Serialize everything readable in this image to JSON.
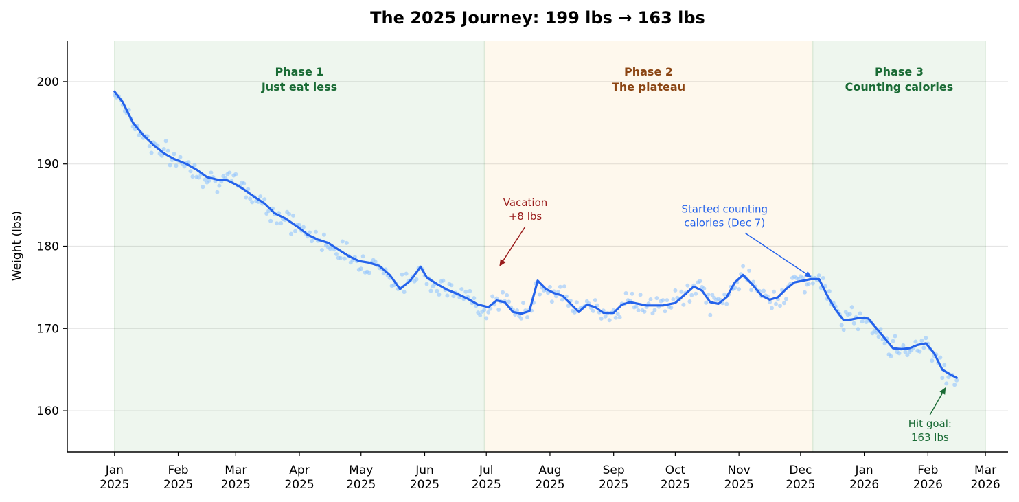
{
  "chart_data": {
    "type": "line",
    "title": "The 2025 Journey: 199 lbs → 163 lbs",
    "xlabel": "",
    "ylabel": "Weight (lbs)",
    "ylim": [
      155,
      205
    ],
    "xlim": [
      "2024-12-09",
      "2026-03-12"
    ],
    "yticks": [
      160,
      170,
      180,
      190,
      200
    ],
    "xticks": [
      {
        "date": "2025-01-01",
        "label": [
          "Jan",
          "2025"
        ]
      },
      {
        "date": "2025-02-01",
        "label": [
          "Feb",
          "2025"
        ]
      },
      {
        "date": "2025-03-01",
        "label": [
          "Mar",
          "2025"
        ]
      },
      {
        "date": "2025-04-01",
        "label": [
          "Apr",
          "2025"
        ]
      },
      {
        "date": "2025-05-01",
        "label": [
          "May",
          "2025"
        ]
      },
      {
        "date": "2025-06-01",
        "label": [
          "Jun",
          "2025"
        ]
      },
      {
        "date": "2025-07-01",
        "label": [
          "Jul",
          "2025"
        ]
      },
      {
        "date": "2025-08-01",
        "label": [
          "Aug",
          "2025"
        ]
      },
      {
        "date": "2025-09-01",
        "label": [
          "Sep",
          "2025"
        ]
      },
      {
        "date": "2025-10-01",
        "label": [
          "Oct",
          "2025"
        ]
      },
      {
        "date": "2025-11-01",
        "label": [
          "Nov",
          "2025"
        ]
      },
      {
        "date": "2025-12-01",
        "label": [
          "Dec",
          "2025"
        ]
      },
      {
        "date": "2026-01-01",
        "label": [
          "Jan",
          "2026"
        ]
      },
      {
        "date": "2026-02-01",
        "label": [
          "Feb",
          "2026"
        ]
      },
      {
        "date": "2026-03-01",
        "label": [
          "Mar",
          "2026"
        ]
      }
    ],
    "grid": "horizontal",
    "phases": [
      {
        "start": "2025-01-01",
        "end": "2025-06-30",
        "label": [
          "Phase 1",
          "Just eat less"
        ],
        "fill": "#e8f3e8",
        "color": "#1a6b35"
      },
      {
        "start": "2025-06-30",
        "end": "2025-12-07",
        "label": [
          "Phase 2",
          "The plateau"
        ],
        "fill": "#fef5e7",
        "color": "#8b4513"
      },
      {
        "start": "2025-12-07",
        "end": "2026-03-01",
        "label": [
          "Phase 3",
          "Counting calories"
        ],
        "fill": "#e8f3e8",
        "color": "#1a6b35"
      }
    ],
    "series": [
      {
        "kind": "trend",
        "color": "#2563eb",
        "points": [
          [
            "2025-01-01",
            198.8
          ],
          [
            "2025-01-05",
            197.5
          ],
          [
            "2025-01-10",
            195.0
          ],
          [
            "2025-01-15",
            193.5
          ],
          [
            "2025-01-20",
            192.3
          ],
          [
            "2025-01-25",
            191.3
          ],
          [
            "2025-01-30",
            190.6
          ],
          [
            "2025-02-05",
            190.0
          ],
          [
            "2025-02-10",
            189.3
          ],
          [
            "2025-02-15",
            188.4
          ],
          [
            "2025-02-20",
            188.1
          ],
          [
            "2025-02-25",
            188.0
          ],
          [
            "2025-03-01",
            187.5
          ],
          [
            "2025-03-05",
            186.9
          ],
          [
            "2025-03-10",
            186.0
          ],
          [
            "2025-03-15",
            185.2
          ],
          [
            "2025-03-20",
            184.0
          ],
          [
            "2025-03-25",
            183.4
          ],
          [
            "2025-04-01",
            182.2
          ],
          [
            "2025-04-05",
            181.4
          ],
          [
            "2025-04-10",
            180.8
          ],
          [
            "2025-04-15",
            180.4
          ],
          [
            "2025-04-20",
            179.6
          ],
          [
            "2025-04-25",
            178.8
          ],
          [
            "2025-04-30",
            178.2
          ],
          [
            "2025-05-05",
            178.0
          ],
          [
            "2025-05-10",
            177.6
          ],
          [
            "2025-05-15",
            176.5
          ],
          [
            "2025-05-20",
            174.8
          ],
          [
            "2025-05-25",
            175.8
          ],
          [
            "2025-05-30",
            177.5
          ],
          [
            "2025-06-02",
            176.2
          ],
          [
            "2025-06-07",
            175.4
          ],
          [
            "2025-06-12",
            174.7
          ],
          [
            "2025-06-17",
            174.2
          ],
          [
            "2025-06-22",
            173.6
          ],
          [
            "2025-06-27",
            172.9
          ],
          [
            "2025-07-02",
            172.6
          ],
          [
            "2025-07-06",
            173.4
          ],
          [
            "2025-07-10",
            173.2
          ],
          [
            "2025-07-14",
            172.0
          ],
          [
            "2025-07-18",
            171.8
          ],
          [
            "2025-07-22",
            172.1
          ],
          [
            "2025-07-26",
            175.8
          ],
          [
            "2025-07-30",
            174.8
          ],
          [
            "2025-08-03",
            174.3
          ],
          [
            "2025-08-07",
            174.0
          ],
          [
            "2025-08-11",
            173.0
          ],
          [
            "2025-08-15",
            172.0
          ],
          [
            "2025-08-19",
            172.9
          ],
          [
            "2025-08-23",
            172.6
          ],
          [
            "2025-08-27",
            171.9
          ],
          [
            "2025-09-01",
            171.9
          ],
          [
            "2025-09-05",
            172.9
          ],
          [
            "2025-09-09",
            173.2
          ],
          [
            "2025-09-13",
            173.0
          ],
          [
            "2025-09-17",
            172.8
          ],
          [
            "2025-09-21",
            172.8
          ],
          [
            "2025-09-25",
            172.8
          ],
          [
            "2025-10-01",
            173.1
          ],
          [
            "2025-10-06",
            174.2
          ],
          [
            "2025-10-10",
            175.1
          ],
          [
            "2025-10-14",
            174.6
          ],
          [
            "2025-10-18",
            173.2
          ],
          [
            "2025-10-22",
            173.0
          ],
          [
            "2025-10-26",
            173.8
          ],
          [
            "2025-10-30",
            175.6
          ],
          [
            "2025-11-03",
            176.5
          ],
          [
            "2025-11-08",
            175.2
          ],
          [
            "2025-11-12",
            174.0
          ],
          [
            "2025-11-16",
            173.5
          ],
          [
            "2025-11-20",
            173.8
          ],
          [
            "2025-11-24",
            174.8
          ],
          [
            "2025-11-28",
            175.6
          ],
          [
            "2025-12-02",
            175.8
          ],
          [
            "2025-12-06",
            176.0
          ],
          [
            "2025-12-10",
            176.0
          ],
          [
            "2025-12-14",
            174.0
          ],
          [
            "2025-12-18",
            172.3
          ],
          [
            "2025-12-22",
            171.0
          ],
          [
            "2025-12-26",
            171.1
          ],
          [
            "2025-12-30",
            171.3
          ],
          [
            "2026-01-03",
            171.2
          ],
          [
            "2026-01-07",
            170.0
          ],
          [
            "2026-01-11",
            168.8
          ],
          [
            "2026-01-15",
            167.6
          ],
          [
            "2026-01-19",
            167.5
          ],
          [
            "2026-01-23",
            167.6
          ],
          [
            "2026-01-27",
            168.0
          ],
          [
            "2026-01-31",
            168.2
          ],
          [
            "2026-02-04",
            167.0
          ],
          [
            "2026-02-08",
            165.0
          ],
          [
            "2026-02-12",
            164.4
          ],
          [
            "2026-02-15",
            164.0
          ]
        ]
      }
    ],
    "annotations": [
      {
        "text": [
          "Vacation",
          "+8 lbs"
        ],
        "point": [
          "2025-07-07",
          177.4
        ],
        "text_at": [
          "2025-07-20",
          184.9
        ],
        "color": "#991b1b"
      },
      {
        "text": [
          "Started counting",
          "calories (Dec 7)"
        ],
        "point": [
          "2025-12-07",
          176.1
        ],
        "text_at": [
          "2025-10-25",
          184.1
        ],
        "color": "#2563eb"
      },
      {
        "text": [
          "Hit goal:",
          "163 lbs"
        ],
        "point": [
          "2026-02-10",
          163.0
        ],
        "text_at": [
          "2026-02-02",
          158.0
        ],
        "color": "#1a6b35"
      }
    ]
  }
}
